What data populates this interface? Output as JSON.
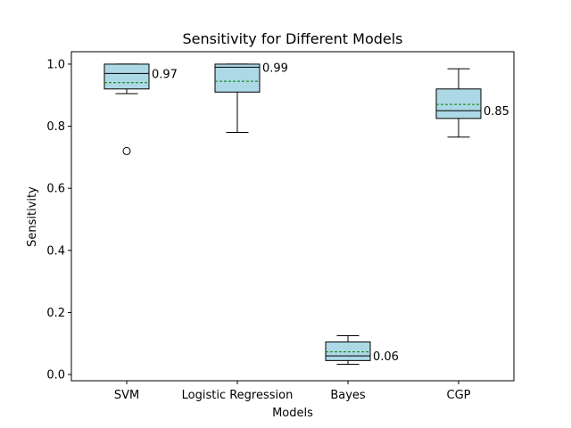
{
  "chart_data": {
    "type": "box",
    "title": "Sensitivity for Different Models",
    "xlabel": "Models",
    "ylabel": "Sensitivity",
    "ylim": [
      -0.02,
      1.04
    ],
    "yticks": [
      0.0,
      0.2,
      0.4,
      0.6,
      0.8,
      1.0
    ],
    "ytick_labels": [
      "0.0",
      "0.2",
      "0.4",
      "0.6",
      "0.8",
      "1.0"
    ],
    "grid": false,
    "categories": [
      "SVM",
      "Logistic Regression",
      "Bayes",
      "CGP"
    ],
    "boxes": [
      {
        "whislo": 0.905,
        "q1": 0.92,
        "med": 0.97,
        "q3": 1.0,
        "whishi": 1.0,
        "mean": 0.94,
        "fliers": [
          0.72
        ],
        "label": "0.97"
      },
      {
        "whislo": 0.78,
        "q1": 0.91,
        "med": 0.99,
        "q3": 1.0,
        "whishi": 1.0,
        "mean": 0.945,
        "fliers": [],
        "label": "0.99"
      },
      {
        "whislo": 0.033,
        "q1": 0.045,
        "med": 0.06,
        "q3": 0.105,
        "whishi": 0.125,
        "mean": 0.073,
        "fliers": [],
        "label": "0.06"
      },
      {
        "whislo": 0.765,
        "q1": 0.825,
        "med": 0.85,
        "q3": 0.92,
        "whishi": 0.985,
        "mean": 0.87,
        "fliers": [],
        "label": "0.85"
      }
    ],
    "colors": {
      "box_fill": "#add8e6",
      "edge": "#000000",
      "mean_line": "#008000"
    }
  }
}
